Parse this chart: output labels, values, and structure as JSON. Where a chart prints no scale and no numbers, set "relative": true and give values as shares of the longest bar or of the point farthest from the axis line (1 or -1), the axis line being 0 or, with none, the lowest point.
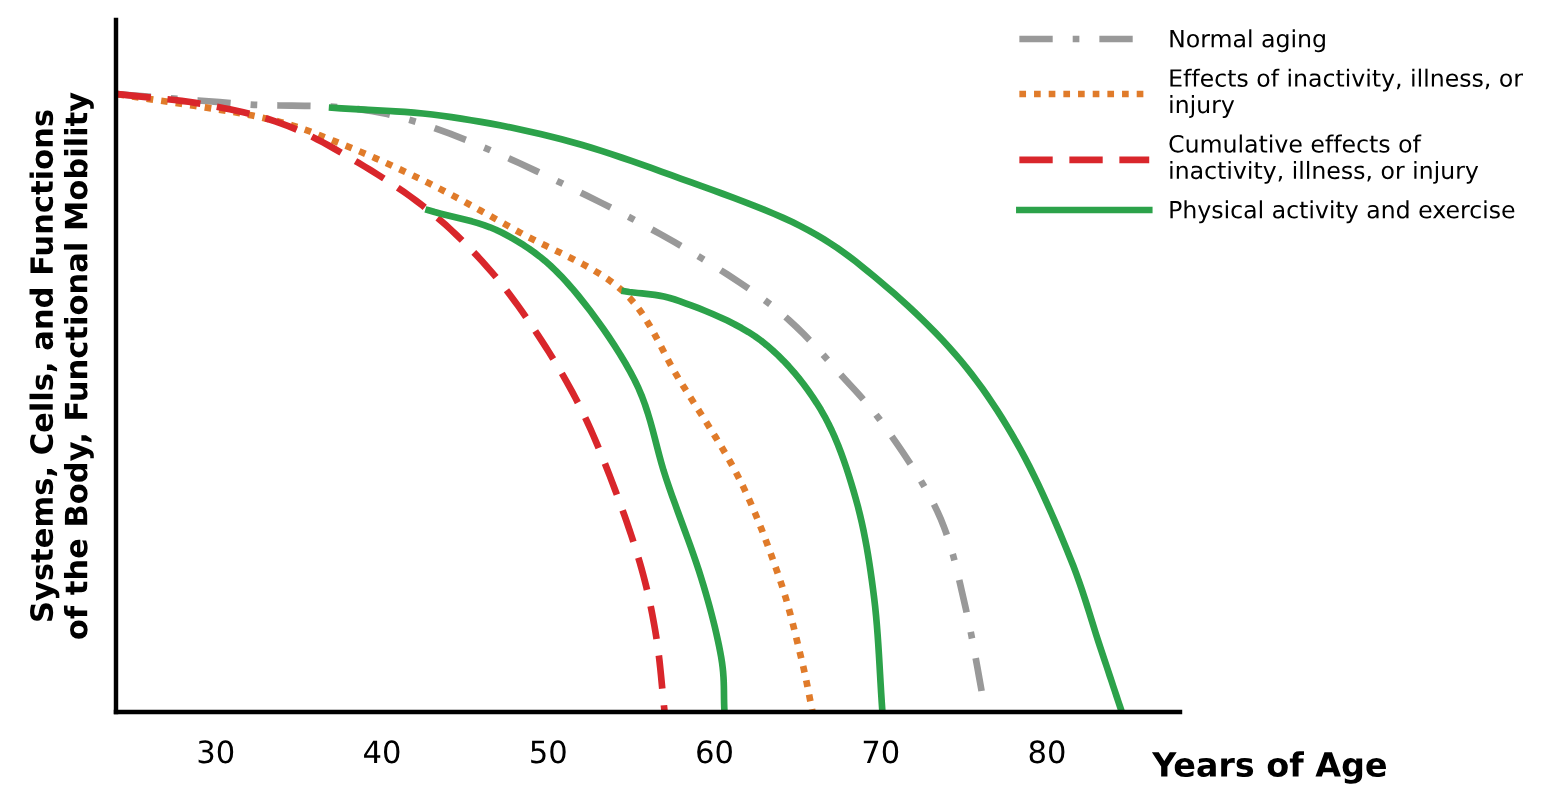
{
  "chart_data": {
    "type": "line",
    "relative": true,
    "xlabel": "Years of Age",
    "ylabel": "Systems, Cells, and Functions\nof the Body, Functional Mobility",
    "xlim": [
      24,
      88
    ],
    "xticks": [
      30,
      40,
      50,
      60,
      70,
      80
    ],
    "legend": "top right",
    "grid": false,
    "marker": "none",
    "series": [
      {
        "name": "Normal aging",
        "color": "#999999",
        "line_style": "dashdot",
        "x": [
          24.1,
          31.6,
          41.2,
          53.2,
          62.8,
          67.9,
          70.8,
          73.6,
          75.1,
          76.3
        ],
        "values": [
          1.0,
          0.984,
          0.962,
          0.824,
          0.671,
          0.537,
          0.441,
          0.313,
          0.169,
          0.0
        ]
      },
      {
        "name": "Effects of inactivity, illness, or\ninjury",
        "color": "#e07b2a",
        "line_style": "dotted",
        "x": [
          24.1,
          32.8,
          37.5,
          42.8,
          48.3,
          54.5,
          57.9,
          61.5,
          63.9,
          65.2,
          65.9
        ],
        "values": [
          1.0,
          0.962,
          0.92,
          0.856,
          0.776,
          0.681,
          0.537,
          0.377,
          0.217,
          0.089,
          0.0
        ]
      },
      {
        "name": "Cumulative effects of\ninactivity, illness, or injury",
        "color": "#d9262b",
        "line_style": "dashed",
        "x": [
          24.1,
          29.2,
          34.0,
          38.2,
          42.8,
          46.6,
          49.6,
          52.0,
          54.0,
          55.6,
          56.5,
          57.0
        ],
        "values": [
          1.0,
          0.984,
          0.952,
          0.895,
          0.812,
          0.712,
          0.601,
          0.489,
          0.361,
          0.233,
          0.121,
          0.0
        ]
      },
      {
        "name": "Physical activity and exercise",
        "color": "#2ca24a",
        "line_style": "solid",
        "x": [
          37.0,
          43.6,
          50.8,
          58.0,
          65.2,
          70.0,
          74.8,
          78.4,
          81.4,
          83.2,
          84.5
        ],
        "values": [
          0.978,
          0.965,
          0.927,
          0.863,
          0.786,
          0.696,
          0.569,
          0.425,
          0.249,
          0.105,
          0.0
        ]
      },
      {
        "color": "#2ca24a",
        "line_style": "solid",
        "x": [
          42.8,
          47.2,
          51.1,
          55.2,
          57.1,
          59.2,
          60.4,
          60.6
        ],
        "values": [
          0.812,
          0.776,
          0.696,
          0.537,
          0.377,
          0.217,
          0.089,
          0.0
        ]
      },
      {
        "color": "#2ca24a",
        "line_style": "solid",
        "x": [
          54.6,
          57.9,
          62.8,
          66.4,
          68.5,
          69.6,
          70.1
        ],
        "values": [
          0.681,
          0.665,
          0.601,
          0.489,
          0.345,
          0.185,
          0.0
        ]
      }
    ]
  }
}
